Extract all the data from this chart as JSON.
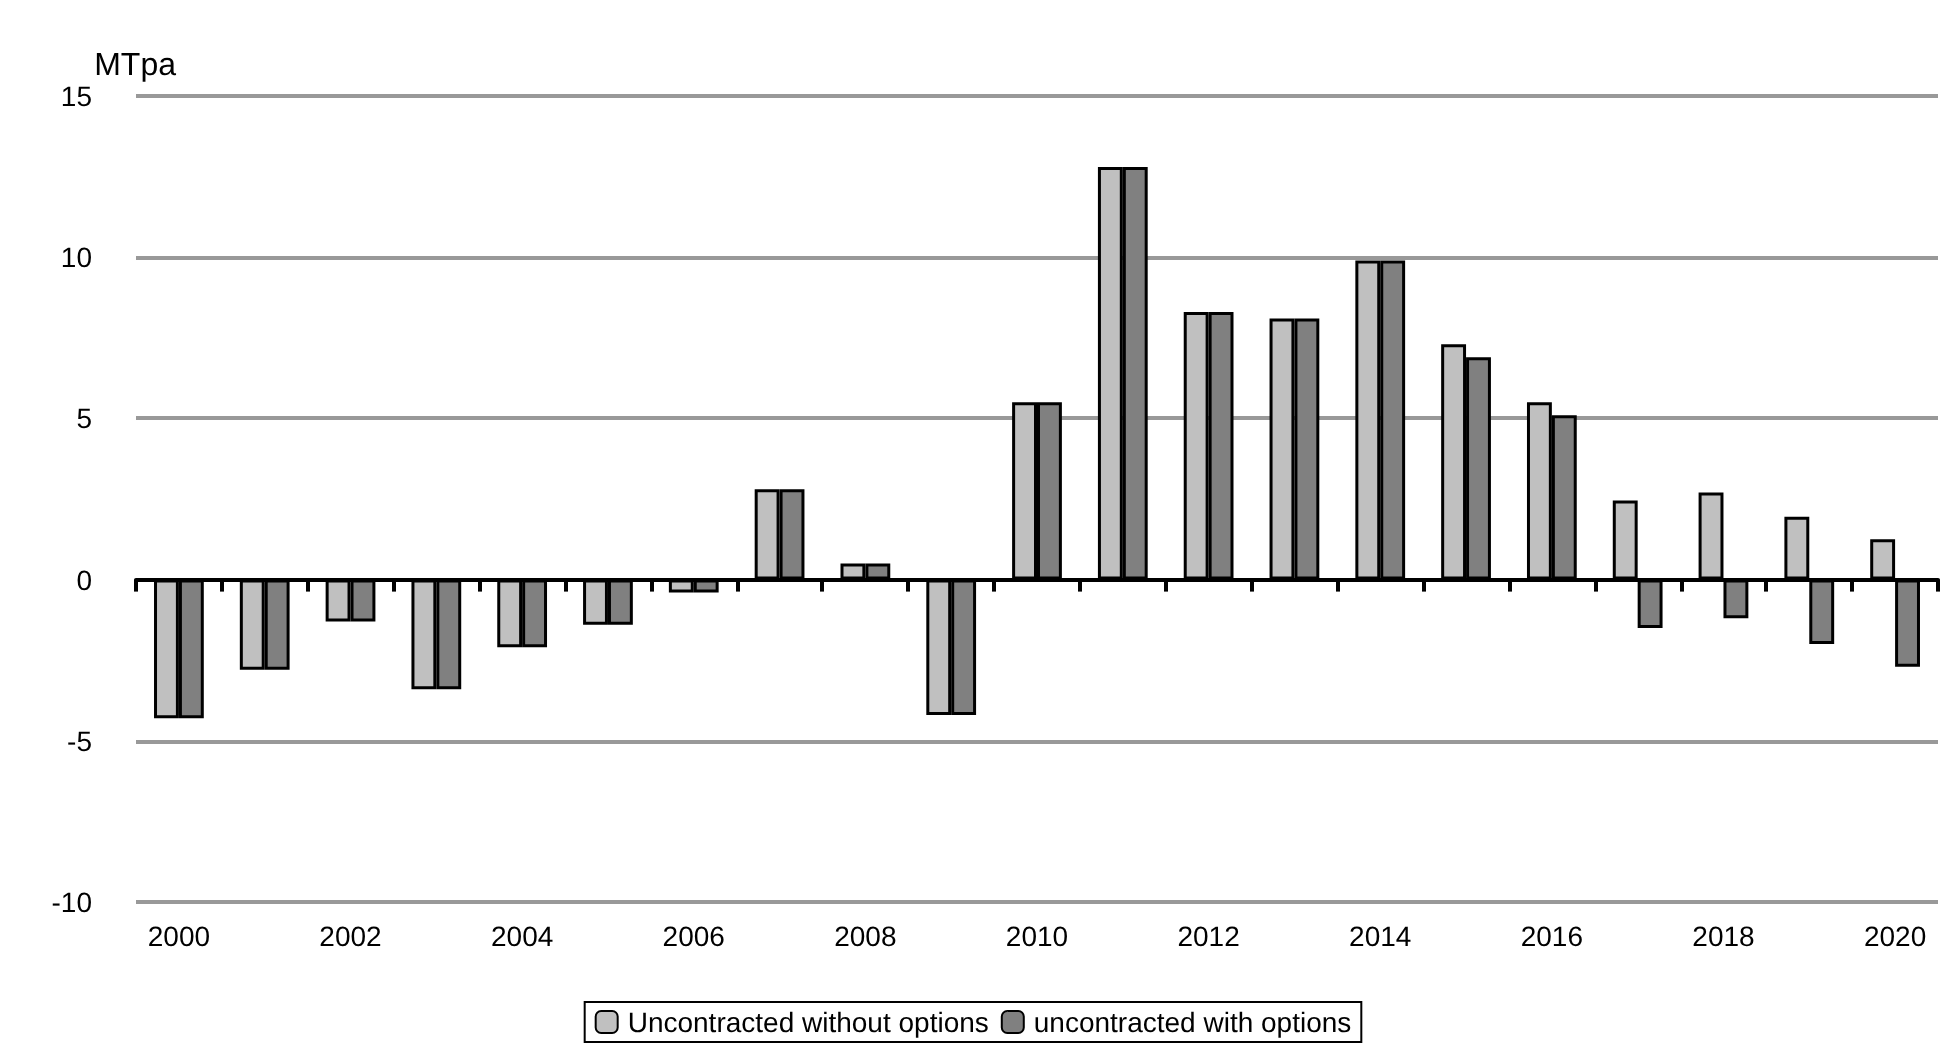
{
  "chart_data": {
    "type": "bar",
    "ylabel": "MTpa",
    "categories": [
      "2000",
      null,
      "2002",
      null,
      "2004",
      null,
      "2006",
      null,
      "2008",
      null,
      "2010",
      null,
      "2012",
      null,
      "2014",
      null,
      "2016",
      null,
      "2018",
      null,
      "2020"
    ],
    "series": [
      {
        "name": "Uncontracted without options",
        "color": "#c0c0c0",
        "values": [
          -4.3,
          -2.8,
          -1.3,
          -3.4,
          -2.1,
          -1.4,
          -0.4,
          2.8,
          0.5,
          -4.2,
          5.5,
          12.8,
          8.3,
          8.1,
          9.9,
          7.3,
          5.5,
          2.45,
          2.7,
          1.95,
          1.25
        ]
      },
      {
        "name": "uncontracted with options",
        "color": "#808080",
        "values": [
          -4.3,
          -2.8,
          -1.3,
          -3.4,
          -2.1,
          -1.4,
          -0.4,
          2.8,
          0.5,
          -4.2,
          5.5,
          12.8,
          8.3,
          8.1,
          9.9,
          6.9,
          5.1,
          -1.5,
          -1.2,
          -2.0,
          -2.7
        ]
      }
    ],
    "ylim": [
      -10,
      15
    ],
    "yticks": [
      -10,
      -5,
      0,
      5,
      10,
      15
    ],
    "grid": "y",
    "legend": "bottom"
  }
}
